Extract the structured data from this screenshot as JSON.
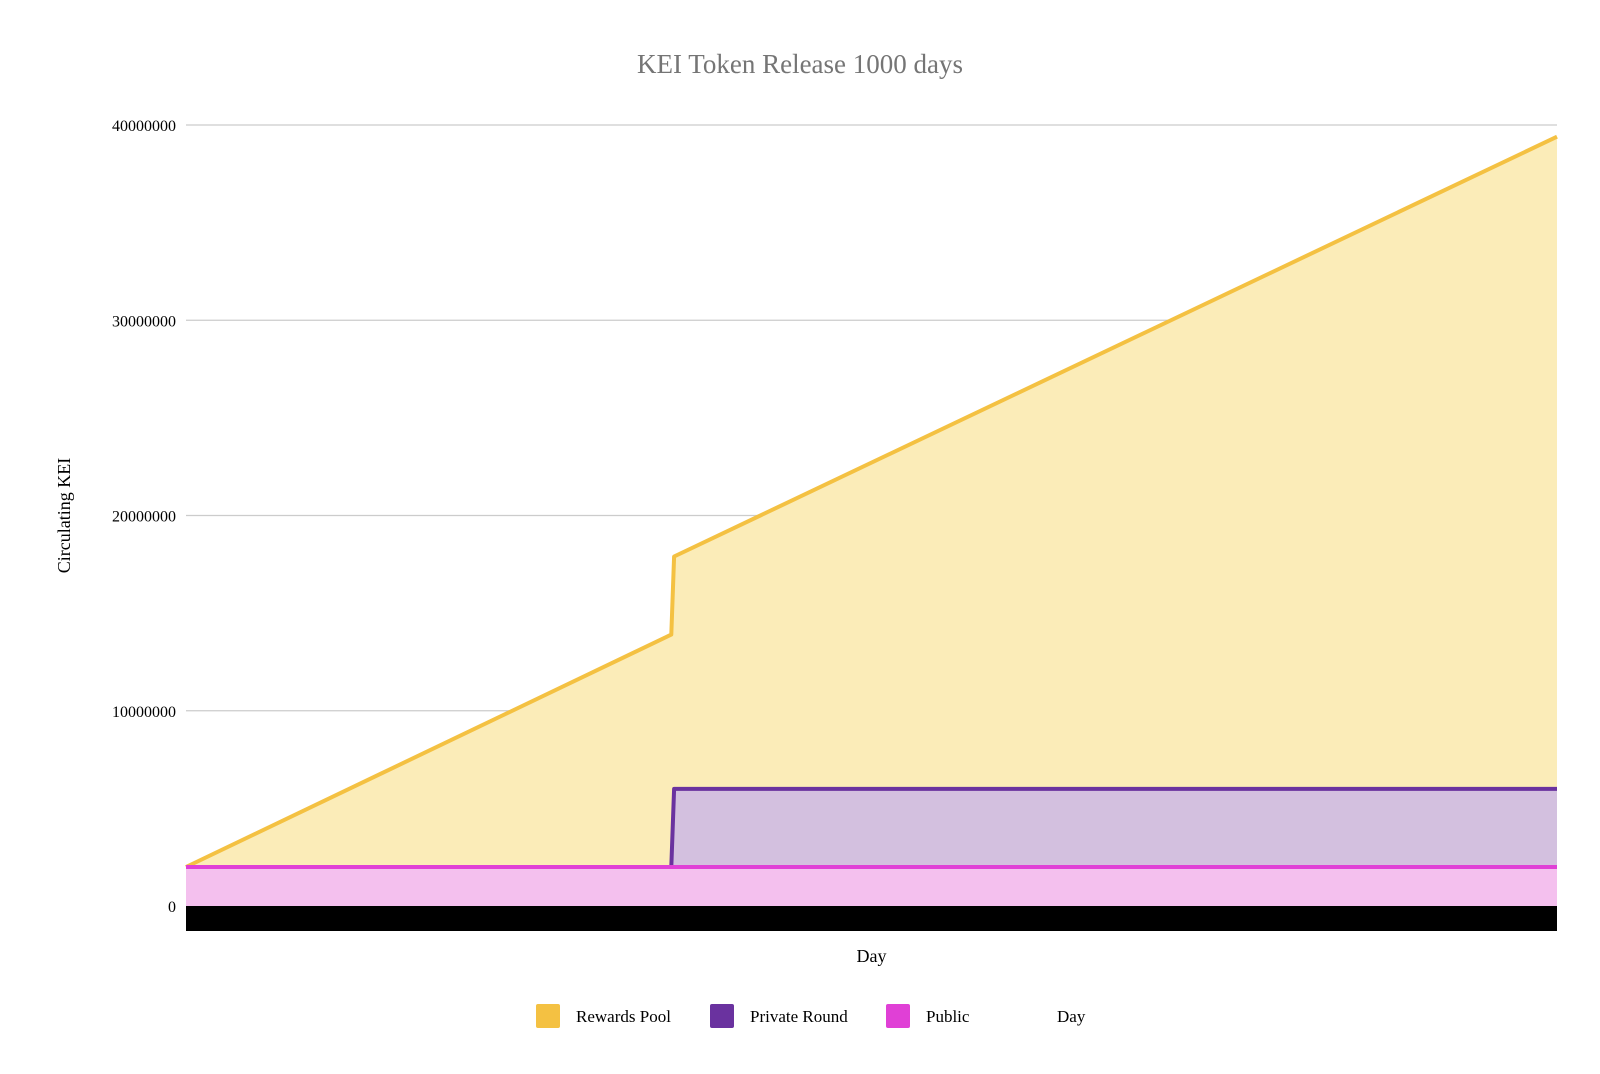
{
  "chart_data": {
    "type": "area",
    "title": "KEI Token Release 1000 days",
    "xlabel": "Day",
    "ylabel": "Circulating KEI",
    "ylim": [
      0,
      40000000
    ],
    "yticks": [
      0,
      10000000,
      20000000,
      30000000,
      40000000
    ],
    "xlim": [
      0,
      1000
    ],
    "x_tick_labels_visible": false,
    "grid": true,
    "legend_position": "bottom",
    "legend": [
      "Rewards Pool",
      "Private Round",
      "Public",
      "Day"
    ],
    "stacked": true,
    "series": [
      {
        "name": "Public",
        "color": "#e040d6",
        "fill": "#f4c0ee",
        "x": [
          0,
          1000
        ],
        "y": [
          2000000,
          2000000
        ]
      },
      {
        "name": "Private Round",
        "color": "#6a329f",
        "fill": "#d3c0df",
        "x": [
          0,
          354,
          356,
          1000
        ],
        "y": [
          2000000,
          2000000,
          6000000,
          6000000
        ]
      },
      {
        "name": "Rewards Pool",
        "color": "#f4c142",
        "fill": "#fbecb8",
        "x": [
          0,
          354,
          356,
          1000
        ],
        "y": [
          2000000,
          13900000,
          17900000,
          39400000
        ]
      },
      {
        "name": "Day",
        "color": "#000000",
        "fill": "#000000",
        "x": [],
        "y": []
      }
    ]
  }
}
